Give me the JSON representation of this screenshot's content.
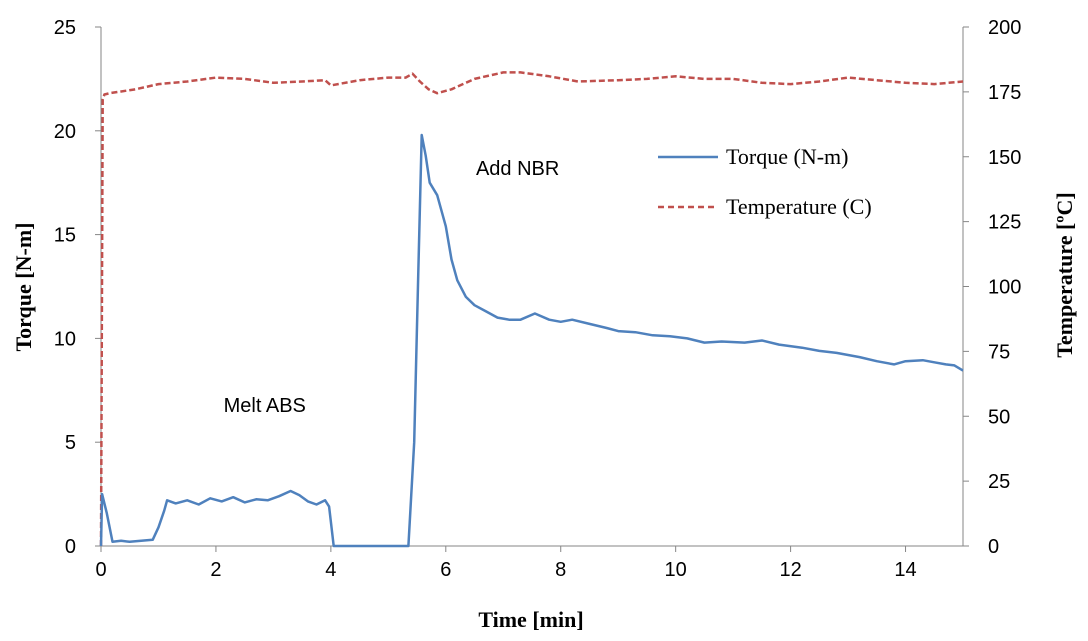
{
  "chart_data": {
    "type": "line",
    "title": "",
    "xlabel": "Time [min]",
    "ylabel_left": "Torque [N-m]",
    "ylabel_right": "Temperature  [ºC]",
    "xlim": [
      0,
      15
    ],
    "ylim_left": [
      0,
      25
    ],
    "ylim_right": [
      0,
      200
    ],
    "x_ticks": [
      0,
      2,
      4,
      6,
      8,
      10,
      12,
      14
    ],
    "y_left_ticks": [
      0,
      5,
      10,
      15,
      20,
      25
    ],
    "y_right_ticks": [
      0,
      25,
      50,
      75,
      100,
      125,
      150,
      175,
      200
    ],
    "grid": false,
    "legend_position": "top-right",
    "annotations": [
      {
        "text": "Melt ABS",
        "x": 2.85,
        "y": 6.8
      },
      {
        "text": "Add NBR",
        "x": 7.25,
        "y": 18.2
      }
    ],
    "series": [
      {
        "name": "Torque (N-m)",
        "axis": "left",
        "color": "#4f81bd",
        "dash": "solid",
        "points": [
          [
            0.0,
            0.0
          ],
          [
            0.02,
            2.5
          ],
          [
            0.1,
            1.6
          ],
          [
            0.2,
            0.2
          ],
          [
            0.35,
            0.25
          ],
          [
            0.5,
            0.2
          ],
          [
            0.7,
            0.25
          ],
          [
            0.9,
            0.3
          ],
          [
            1.0,
            0.9
          ],
          [
            1.1,
            1.7
          ],
          [
            1.15,
            2.2
          ],
          [
            1.3,
            2.05
          ],
          [
            1.5,
            2.2
          ],
          [
            1.7,
            2.0
          ],
          [
            1.9,
            2.3
          ],
          [
            2.1,
            2.15
          ],
          [
            2.3,
            2.35
          ],
          [
            2.5,
            2.1
          ],
          [
            2.7,
            2.25
          ],
          [
            2.9,
            2.2
          ],
          [
            3.1,
            2.4
          ],
          [
            3.3,
            2.65
          ],
          [
            3.45,
            2.45
          ],
          [
            3.6,
            2.15
          ],
          [
            3.75,
            2.0
          ],
          [
            3.9,
            2.2
          ],
          [
            3.97,
            1.9
          ],
          [
            4.05,
            0.0
          ],
          [
            5.35,
            0.0
          ],
          [
            5.45,
            5.0
          ],
          [
            5.52,
            13.0
          ],
          [
            5.58,
            19.8
          ],
          [
            5.65,
            18.8
          ],
          [
            5.72,
            17.5
          ],
          [
            5.85,
            16.9
          ],
          [
            6.0,
            15.4
          ],
          [
            6.1,
            13.8
          ],
          [
            6.2,
            12.8
          ],
          [
            6.35,
            12.0
          ],
          [
            6.5,
            11.6
          ],
          [
            6.7,
            11.3
          ],
          [
            6.9,
            11.0
          ],
          [
            7.1,
            10.9
          ],
          [
            7.3,
            10.9
          ],
          [
            7.55,
            11.2
          ],
          [
            7.8,
            10.9
          ],
          [
            8.0,
            10.8
          ],
          [
            8.2,
            10.9
          ],
          [
            8.5,
            10.7
          ],
          [
            8.8,
            10.5
          ],
          [
            9.0,
            10.35
          ],
          [
            9.3,
            10.3
          ],
          [
            9.6,
            10.15
          ],
          [
            9.9,
            10.1
          ],
          [
            10.2,
            10.0
          ],
          [
            10.5,
            9.8
          ],
          [
            10.8,
            9.85
          ],
          [
            11.2,
            9.8
          ],
          [
            11.5,
            9.9
          ],
          [
            11.8,
            9.7
          ],
          [
            12.2,
            9.55
          ],
          [
            12.5,
            9.4
          ],
          [
            12.8,
            9.3
          ],
          [
            13.0,
            9.2
          ],
          [
            13.2,
            9.1
          ],
          [
            13.5,
            8.9
          ],
          [
            13.8,
            8.75
          ],
          [
            14.0,
            8.9
          ],
          [
            14.3,
            8.95
          ],
          [
            14.5,
            8.85
          ],
          [
            14.7,
            8.75
          ],
          [
            14.85,
            8.7
          ],
          [
            15.0,
            8.45
          ]
        ]
      },
      {
        "name": "Temperature (C)",
        "axis": "right",
        "color": "#c0504d",
        "dash": "dashed",
        "points": [
          [
            0.0,
            0.0
          ],
          [
            0.03,
            172.0
          ],
          [
            0.06,
            174.0
          ],
          [
            0.15,
            174.5
          ],
          [
            0.3,
            175.0
          ],
          [
            0.6,
            176.0
          ],
          [
            1.0,
            178.0
          ],
          [
            1.5,
            179.0
          ],
          [
            2.0,
            180.5
          ],
          [
            2.5,
            180.0
          ],
          [
            3.0,
            178.5
          ],
          [
            3.5,
            179.0
          ],
          [
            3.9,
            179.5
          ],
          [
            4.0,
            177.5
          ],
          [
            4.5,
            179.5
          ],
          [
            5.0,
            180.5
          ],
          [
            5.3,
            180.5
          ],
          [
            5.42,
            182.0
          ],
          [
            5.55,
            179.0
          ],
          [
            5.7,
            176.0
          ],
          [
            5.85,
            174.5
          ],
          [
            6.1,
            176.0
          ],
          [
            6.5,
            180.0
          ],
          [
            7.0,
            182.5
          ],
          [
            7.3,
            182.5
          ],
          [
            7.8,
            181.0
          ],
          [
            8.3,
            179.0
          ],
          [
            9.0,
            179.5
          ],
          [
            9.5,
            180.0
          ],
          [
            10.0,
            181.0
          ],
          [
            10.5,
            180.0
          ],
          [
            11.0,
            180.0
          ],
          [
            11.5,
            178.5
          ],
          [
            12.0,
            178.0
          ],
          [
            12.5,
            179.0
          ],
          [
            13.0,
            180.5
          ],
          [
            13.5,
            179.5
          ],
          [
            14.0,
            178.5
          ],
          [
            14.5,
            178.0
          ],
          [
            15.0,
            179.0
          ]
        ]
      }
    ]
  }
}
